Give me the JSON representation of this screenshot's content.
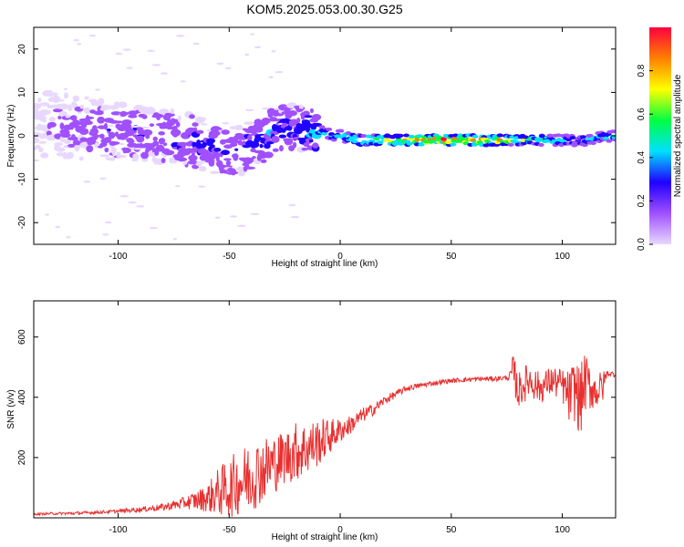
{
  "title": "KOM5.2025.053.00.30.G25",
  "chart_data": [
    {
      "type": "heatmap",
      "xlabel": "Height of straight line (km)",
      "ylabel": "Frequency (Hz)",
      "xlim": [
        -138,
        124
      ],
      "ylim": [
        -25,
        25
      ],
      "x_ticks": [
        -100,
        -50,
        0,
        50,
        100
      ],
      "y_ticks": [
        -20,
        -10,
        0,
        10,
        20
      ],
      "colorbar": {
        "label": "Normalized spectral amplitude",
        "range": [
          0,
          1
        ],
        "ticks": [
          0.0,
          0.2,
          0.4,
          0.6,
          0.8
        ],
        "tick_labels": [
          "0.0",
          "0.2",
          "0.4",
          "0.6",
          "0.8"
        ],
        "colors": [
          "#e8d8ff",
          "#a050ff",
          "#2000ff",
          "#00e0ff",
          "#00ff40",
          "#ffff00",
          "#ff8000",
          "#ff0040"
        ]
      },
      "ridge": {
        "x": [
          -135,
          -120,
          -100,
          -80,
          -60,
          -50,
          -40,
          -30,
          -20,
          -10,
          0,
          10,
          20,
          30,
          40,
          50,
          60,
          70,
          80,
          90,
          100,
          110,
          120
        ],
        "freq": [
          3,
          2,
          1,
          0,
          -2,
          -4,
          -2,
          1,
          2,
          1,
          0,
          -1,
          -1,
          -1,
          -1,
          -1,
          -1,
          -1,
          -1,
          -1,
          -1,
          -1,
          0
        ],
        "amplitude": [
          0.1,
          0.2,
          0.25,
          0.25,
          0.3,
          0.25,
          0.3,
          0.35,
          0.3,
          0.45,
          0.45,
          0.55,
          0.7,
          0.8,
          0.9,
          0.85,
          0.8,
          0.75,
          0.6,
          0.5,
          0.45,
          0.4,
          0.45
        ]
      }
    },
    {
      "type": "line",
      "xlabel": "Height of straight line (km)",
      "ylabel": "SNR (v/v)",
      "xlim": [
        -138,
        124
      ],
      "ylim": [
        0,
        720
      ],
      "x_ticks": [
        -100,
        -50,
        0,
        50,
        100
      ],
      "y_ticks": [
        200,
        400,
        600
      ],
      "series": [
        {
          "color": "#e83030",
          "x": [
            -138,
            -130,
            -120,
            -110,
            -100,
            -90,
            -80,
            -70,
            -60,
            -55,
            -50,
            -45,
            -40,
            -35,
            -30,
            -25,
            -20,
            -15,
            -10,
            -5,
            0,
            5,
            10,
            15,
            20,
            25,
            30,
            40,
            50,
            60,
            70,
            76,
            78,
            80,
            85,
            90,
            95,
            100,
            103,
            106,
            108,
            110,
            115,
            118,
            120,
            124
          ],
          "y": [
            12,
            14,
            15,
            18,
            22,
            28,
            35,
            50,
            65,
            85,
            100,
            120,
            140,
            160,
            180,
            200,
            220,
            230,
            250,
            270,
            290,
            310,
            340,
            360,
            390,
            410,
            430,
            445,
            455,
            460,
            462,
            465,
            490,
            420,
            460,
            430,
            455,
            440,
            400,
            430,
            380,
            450,
            420,
            430,
            480,
            475
          ],
          "noise": [
            3,
            4,
            5,
            5,
            6,
            8,
            12,
            20,
            45,
            80,
            100,
            110,
            120,
            110,
            100,
            90,
            100,
            90,
            80,
            60,
            40,
            30,
            25,
            20,
            15,
            12,
            10,
            8,
            8,
            8,
            8,
            8,
            60,
            60,
            60,
            50,
            50,
            55,
            90,
            110,
            120,
            100,
            60,
            60,
            10,
            10
          ]
        }
      ]
    }
  ]
}
